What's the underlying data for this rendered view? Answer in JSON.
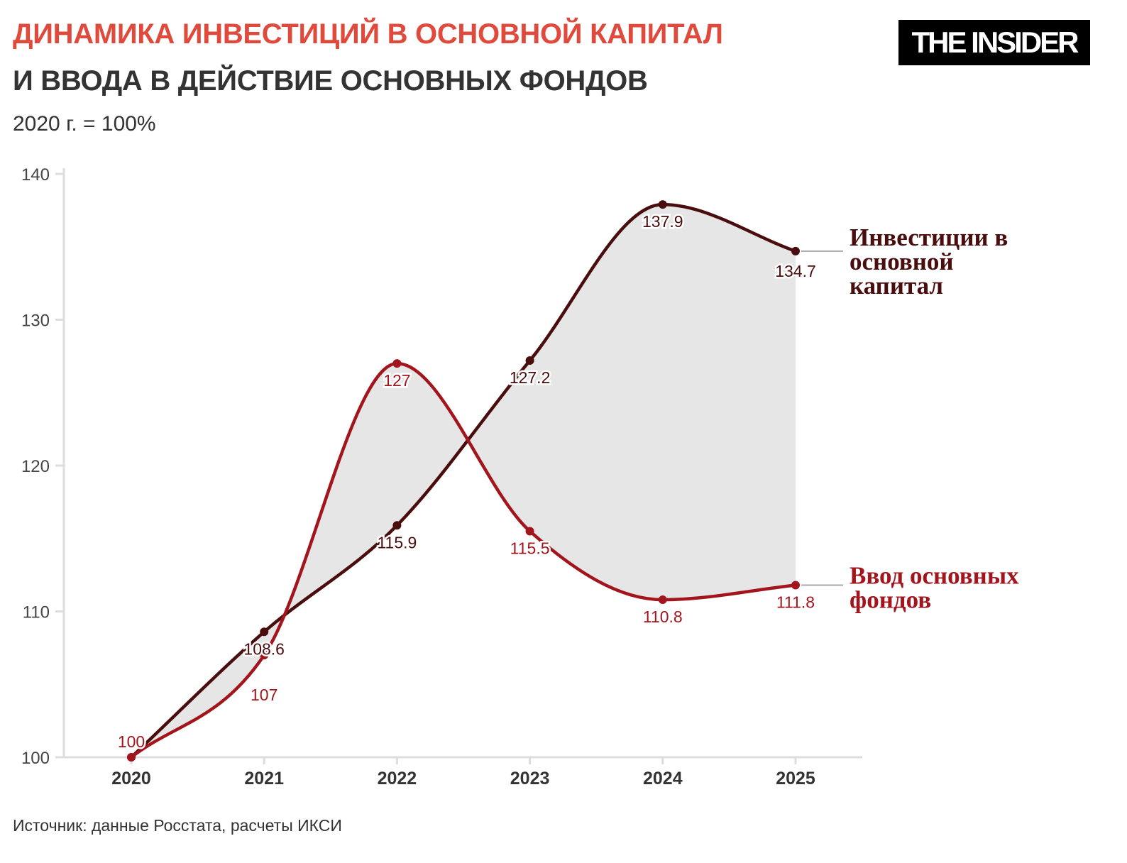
{
  "header": {
    "title": "ДИНАМИКА ИНВЕСТИЦИЙ В ОСНОВНОЙ КАПИТАЛ",
    "subtitle": "И ВВОДА В ДЕЙСТВИЕ ОСНОВНЫХ ФОНДОВ",
    "unit": "2020 г. = 100%",
    "logo": "THE INSIDER"
  },
  "footer": {
    "source": "Источник: данные Росстата, расчеты ИКСИ"
  },
  "colors": {
    "title": "#e04a3c",
    "series_investments": "#4a0d0d",
    "series_commissioning": "#a3151c",
    "fill_between": "#e6e6e6"
  },
  "chart_data": {
    "type": "line",
    "categories": [
      "2020",
      "2021",
      "2022",
      "2023",
      "2024",
      "2025"
    ],
    "ylim": [
      100,
      140
    ],
    "yticks": [
      100,
      110,
      120,
      130,
      140
    ],
    "grid": false,
    "fill_between_series": true,
    "series": [
      {
        "name": "Инвестиции в основной капитал",
        "name_lines": [
          "Инвестиции в",
          "основной",
          "капитал"
        ],
        "values": [
          100,
          108.6,
          115.9,
          127.2,
          137.9,
          134.7
        ],
        "labels": [
          "",
          "108.6",
          "115.9",
          "127.2",
          "137.9",
          "134.7"
        ]
      },
      {
        "name": "Ввод основных фондов",
        "name_lines": [
          "Ввод основных",
          "фондов"
        ],
        "values": [
          100,
          107,
          127,
          115.5,
          110.8,
          111.8
        ],
        "labels": [
          "100",
          "107",
          "127",
          "115.5",
          "110.8",
          "111.8"
        ]
      }
    ]
  }
}
